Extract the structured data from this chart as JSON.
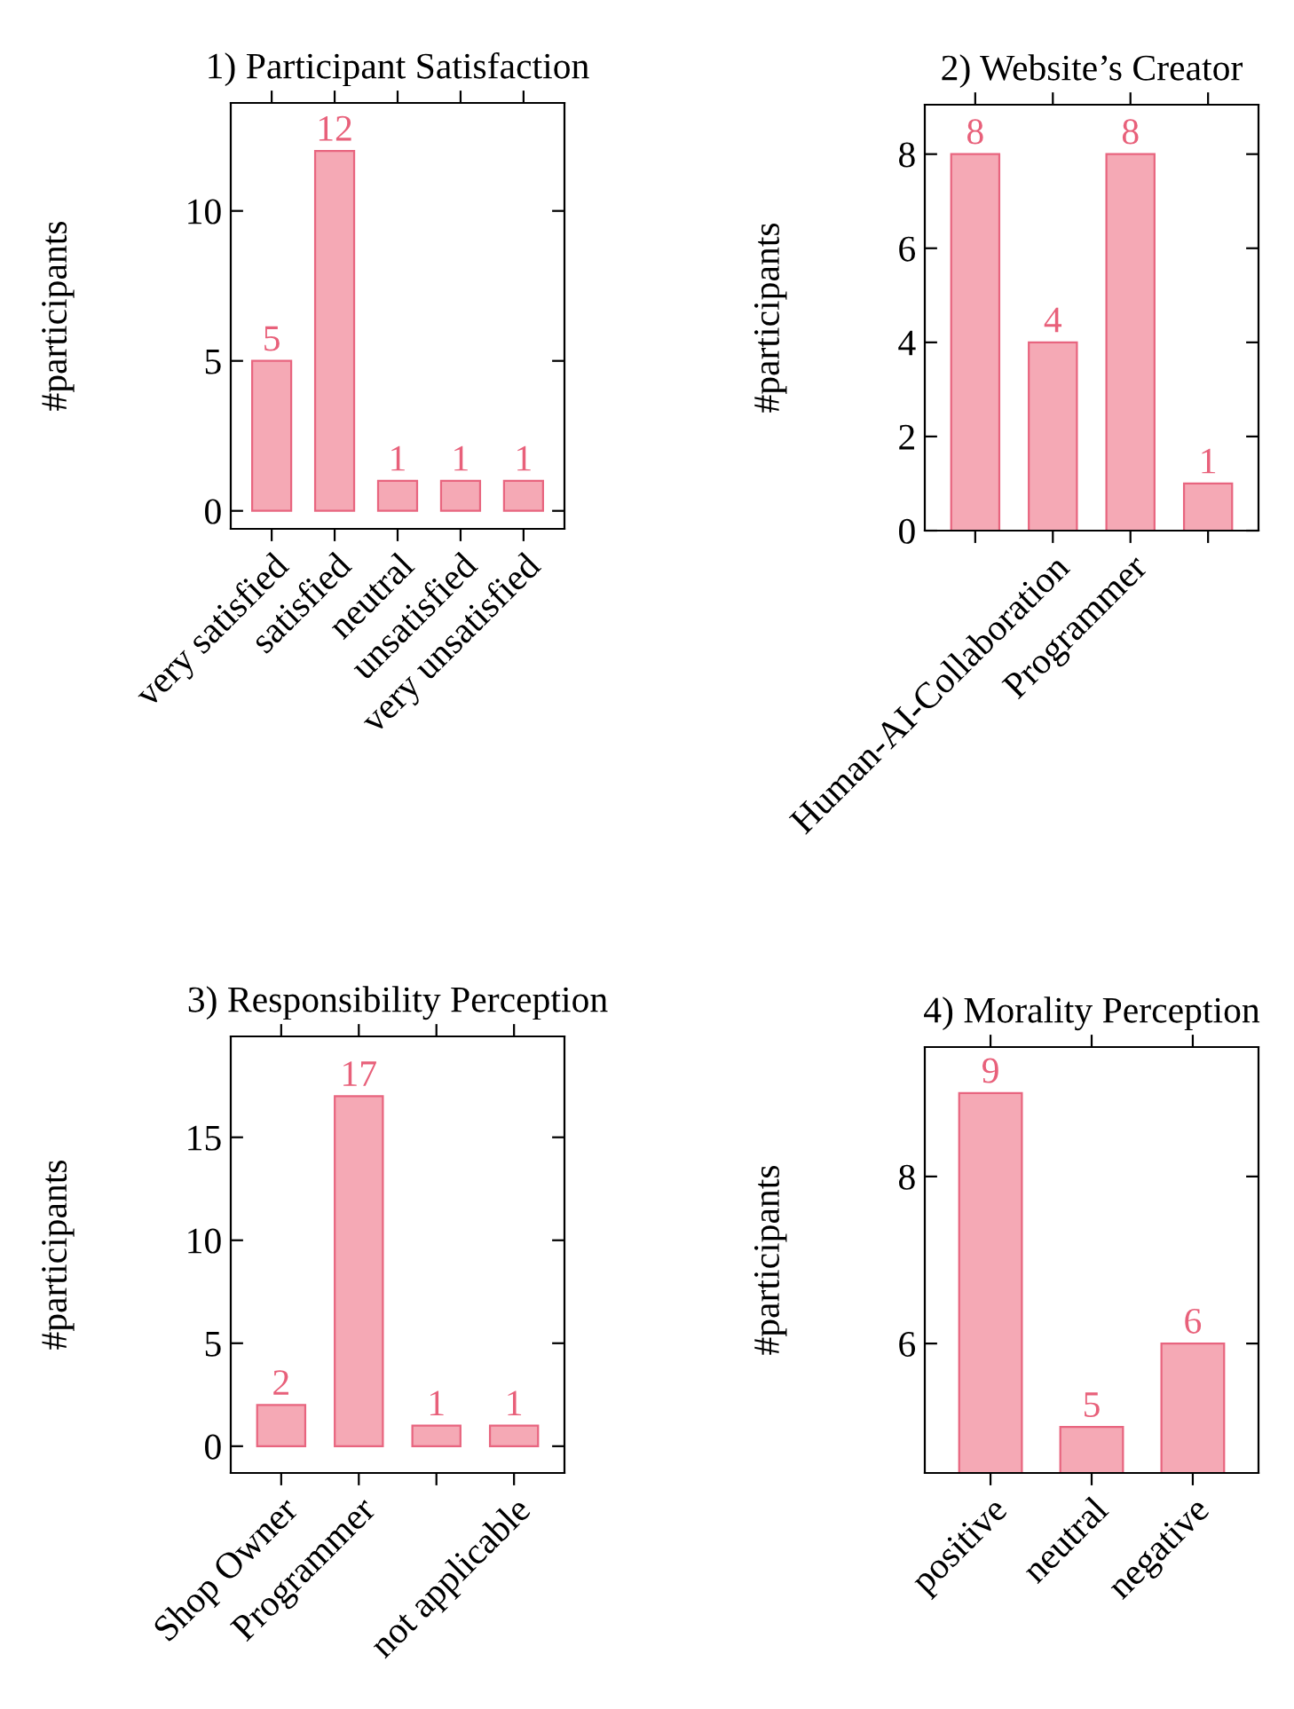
{
  "chart_data": [
    {
      "type": "bar",
      "title": "1) Participant Satisfaction",
      "ylabel": "#participants",
      "categories": [
        "very satisfied",
        "satisfied",
        "neutral",
        "unsatisfied",
        "very unsatisfied"
      ],
      "values": [
        5,
        12,
        1,
        1,
        1
      ],
      "color": "#f5a9b5",
      "ylim": [
        -0.6,
        13.6
      ],
      "yticks": [
        0,
        5,
        10
      ],
      "data_labels": true,
      "grid": false,
      "legend": false
    },
    {
      "type": "bar",
      "title": "2) Website’s Creator",
      "ylabel": "#participants",
      "categories": [
        null,
        "Human-AI-Collaboration",
        "Programmer",
        null
      ],
      "values": [
        8,
        4,
        8,
        1
      ],
      "color": "#f5a9b5",
      "ylim": [
        0,
        9.05
      ],
      "yticks": [
        0,
        2,
        4,
        6,
        8
      ],
      "data_labels": true,
      "grid": false,
      "legend": false
    },
    {
      "type": "bar",
      "title": "3) Responsibility Perception",
      "ylabel": "#participants",
      "categories": [
        "Shop Owner",
        "Programmer",
        null,
        "not applicable"
      ],
      "values": [
        2,
        17,
        1,
        1
      ],
      "color": "#f5a9b5",
      "ylim": [
        -1.3,
        19.9
      ],
      "yticks": [
        0,
        5,
        10,
        15
      ],
      "data_labels": true,
      "grid": false,
      "legend": false
    },
    {
      "type": "bar",
      "title": "4) Morality Perception",
      "ylabel": "#participants",
      "categories": [
        "positive",
        "neutral",
        "negative"
      ],
      "values": [
        9,
        5,
        6
      ],
      "color": "#f5a9b5",
      "ylim": [
        4.45,
        9.55
      ],
      "yticks": [
        6,
        8
      ],
      "data_labels": true,
      "grid": false,
      "legend": false
    }
  ]
}
